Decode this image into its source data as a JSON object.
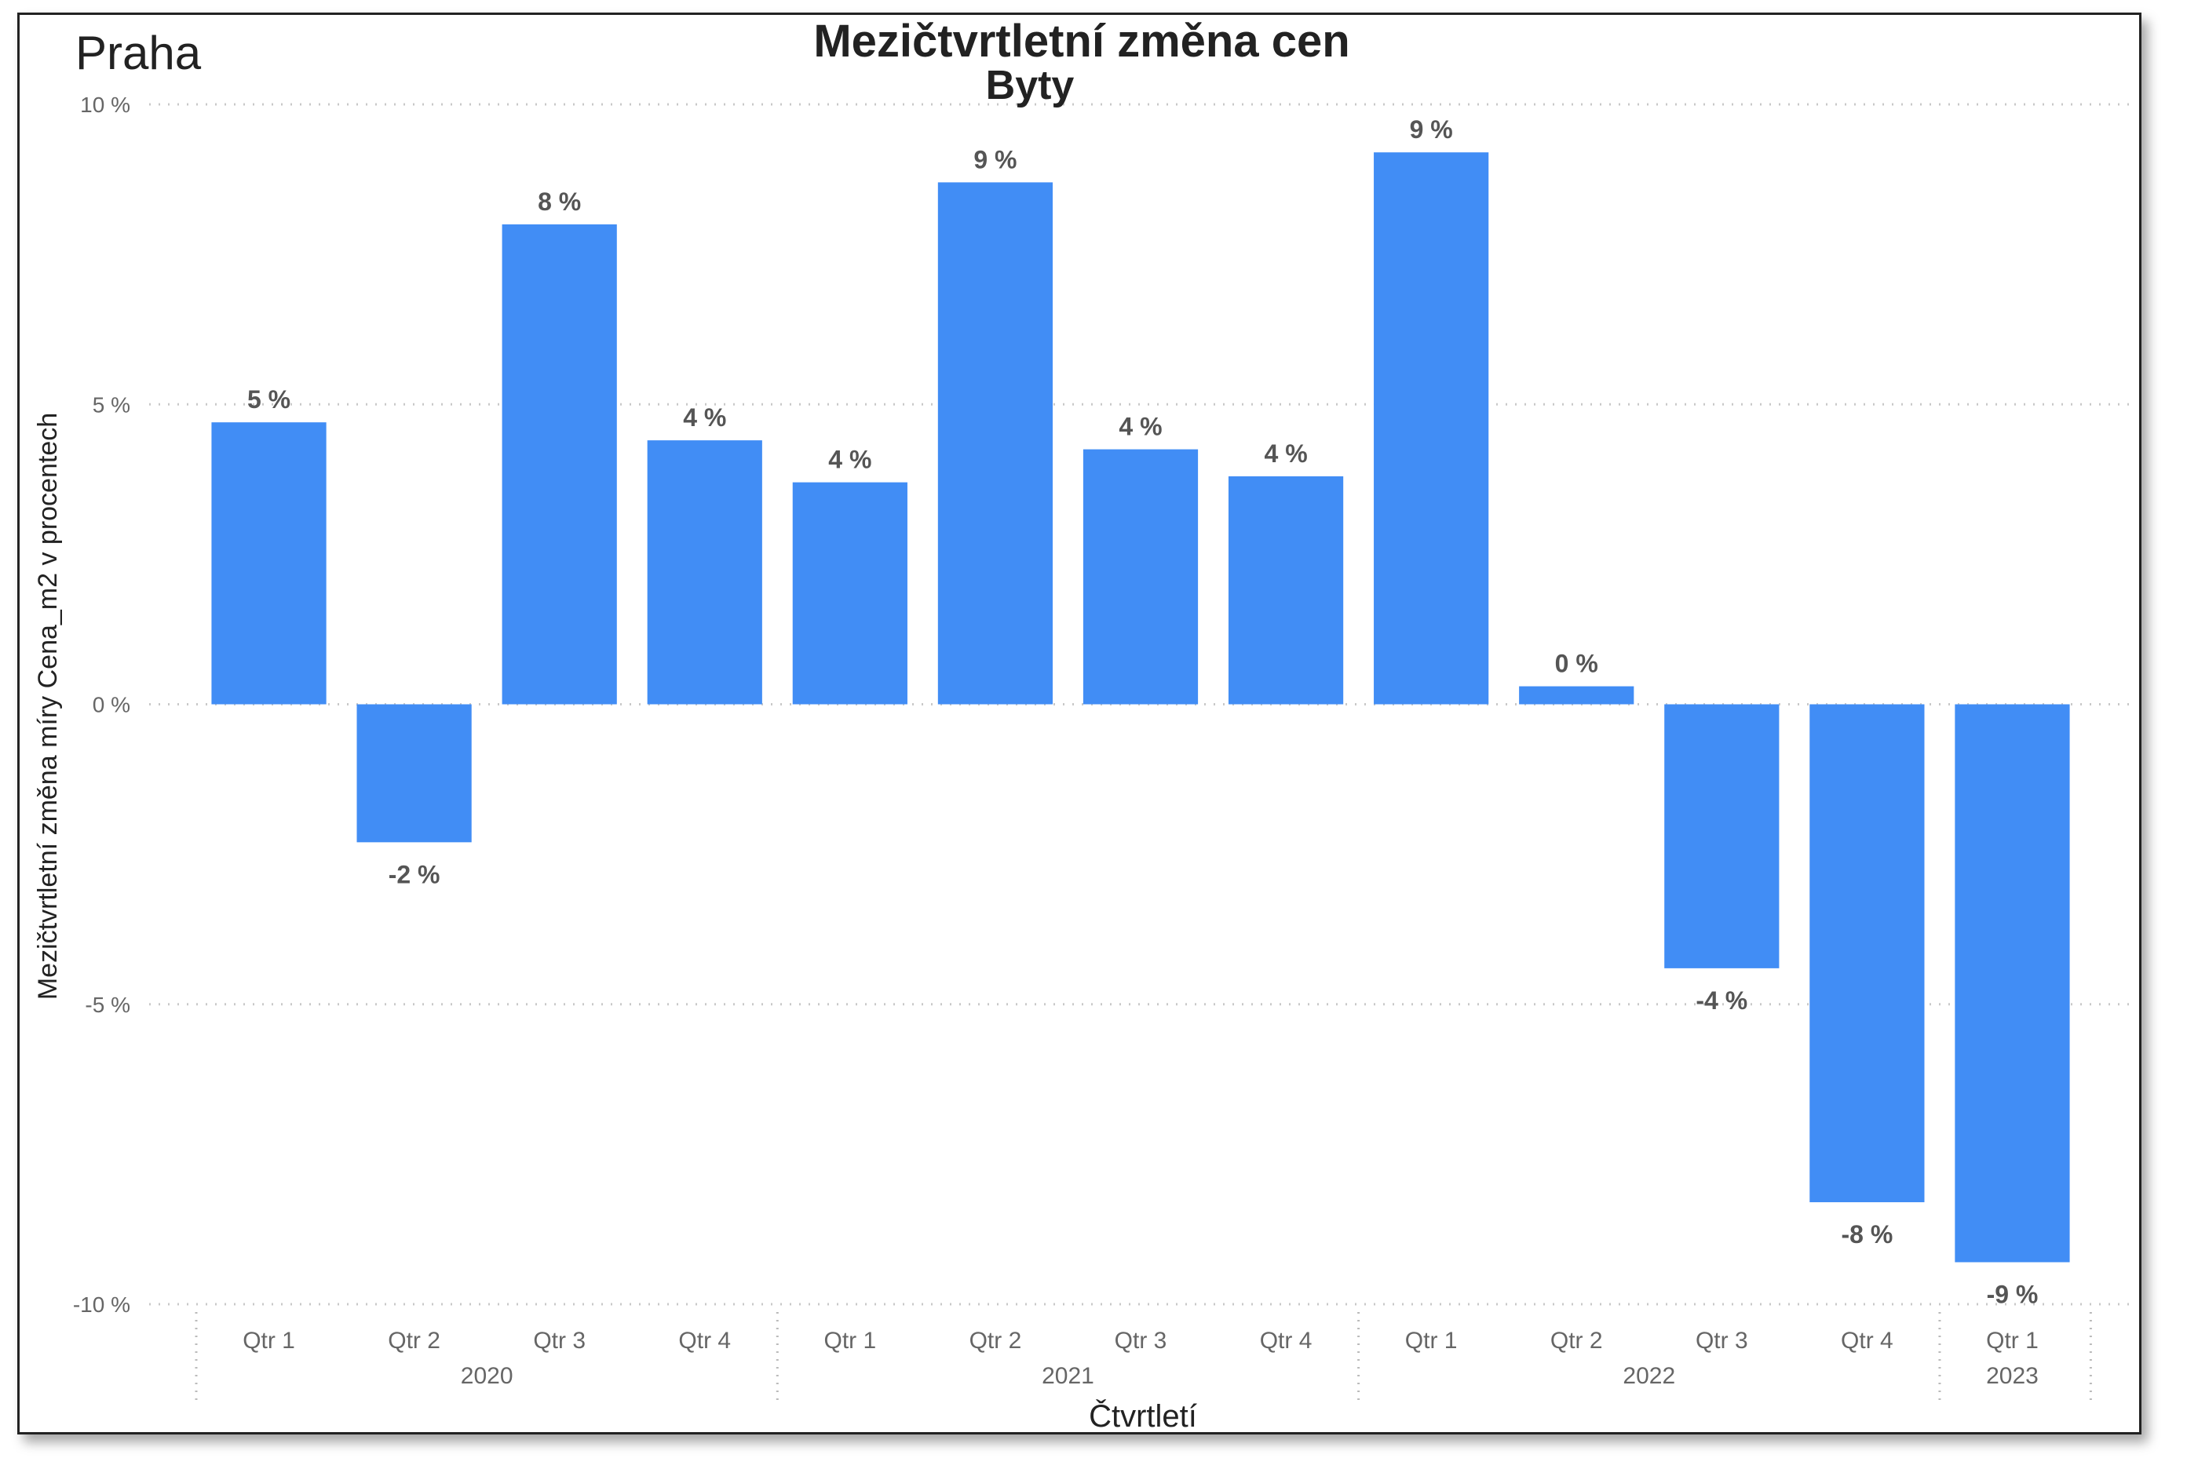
{
  "corner_label": "Praha",
  "chart_data": {
    "type": "bar",
    "title": "Mezičtvrtletní změna cen",
    "subtitle": "Byty",
    "xlabel": "Čtvrtletí",
    "ylabel": "Mezičtvrtletní změna míry Cena_m2 v procentech",
    "ylim": [
      -10,
      10
    ],
    "yticks": [
      -10,
      -5,
      0,
      5,
      10
    ],
    "ytick_labels": [
      "-10 %",
      "-5 %",
      "0 %",
      "5 %",
      "10 %"
    ],
    "grid": true,
    "categories": [
      "Qtr 1",
      "Qtr 2",
      "Qtr 3",
      "Qtr 4",
      "Qtr 1",
      "Qtr 2",
      "Qtr 3",
      "Qtr 4",
      "Qtr 1",
      "Qtr 2",
      "Qtr 3",
      "Qtr 4",
      "Qtr 1"
    ],
    "years": [
      {
        "label": "2020",
        "span": 4
      },
      {
        "label": "2021",
        "span": 4
      },
      {
        "label": "2022",
        "span": 4
      },
      {
        "label": "2023",
        "span": 1
      }
    ],
    "values": [
      4.7,
      -2.3,
      8.0,
      4.4,
      3.7,
      8.7,
      4.25,
      3.8,
      9.2,
      0.3,
      -4.4,
      -8.3,
      -9.3
    ],
    "data_labels": [
      "5 %",
      "-2 %",
      "8 %",
      "4 %",
      "4 %",
      "9 %",
      "4 %",
      "4 %",
      "9 %",
      "0 %",
      "-4 %",
      "-8 %",
      "-9 %"
    ],
    "bar_color": "#418df5"
  }
}
